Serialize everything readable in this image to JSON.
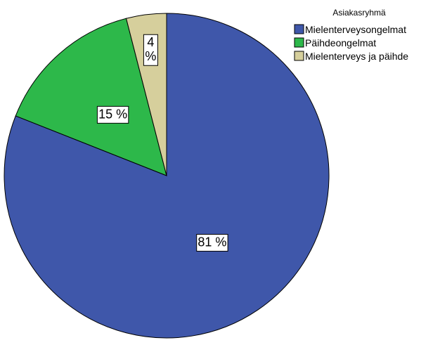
{
  "chart_data": {
    "type": "pie",
    "legend_title": "Asiakasryhmä",
    "legend_position": "top-right",
    "slices": [
      {
        "label": "Mielenterveysongelmat",
        "value": 81,
        "value_label": "81 %",
        "color": "#3f57aa"
      },
      {
        "label": "Päihdeongelmat",
        "value": 15,
        "value_label": "15 %",
        "color": "#2db84a"
      },
      {
        "label": "Mielenterveys ja päihde",
        "value": 4,
        "value_label": "4 %",
        "color": "#d6cf9c"
      }
    ]
  }
}
